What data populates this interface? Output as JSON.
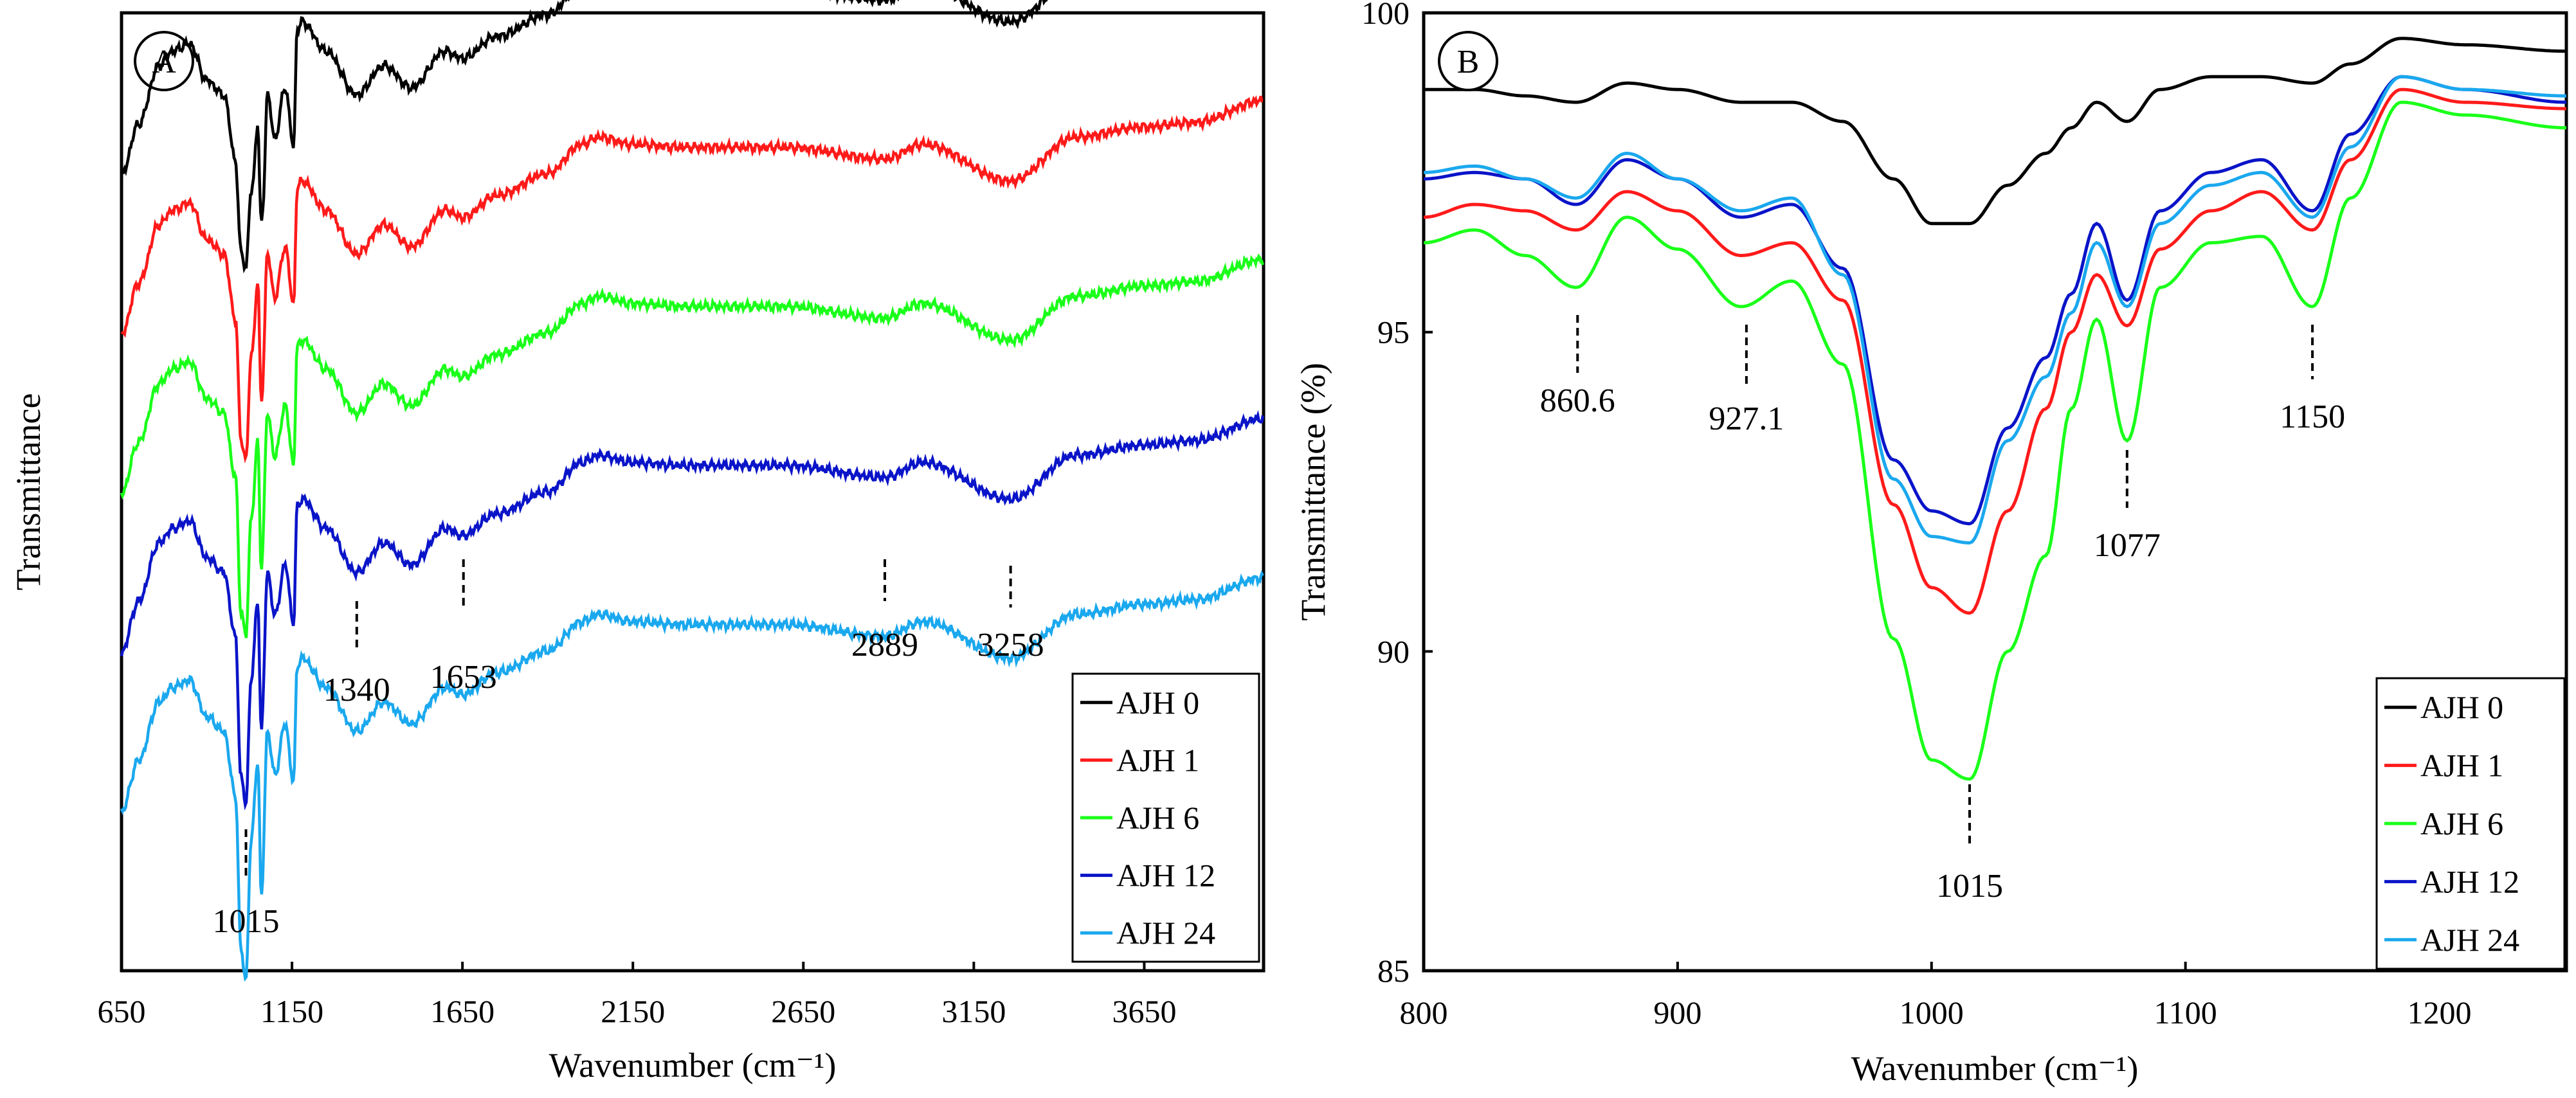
{
  "colors": {
    "AJH 0": "#000000",
    "AJH 1": "#ff1a1a",
    "AJH 6": "#1aff1a",
    "AJH 12": "#0a14c8",
    "AJH 24": "#1aa8ee"
  },
  "chart_data": [
    {
      "panel_label": "A",
      "type": "line",
      "title": "",
      "xlabel": "Wavenumber (cm⁻¹)",
      "ylabel": "Transmittance",
      "xlim": [
        650,
        4000
      ],
      "ylim": [
        -0.3,
        5.6
      ],
      "yticks_visible": false,
      "xticks": [
        650,
        1150,
        1650,
        2150,
        2650,
        3150,
        3650
      ],
      "xtick_labels": [
        "650",
        "1150",
        "1650",
        "2150",
        "2650",
        "3150",
        "3650"
      ],
      "legend_position": "bottom-right",
      "legend": [
        "AJH 0",
        "AJH 1",
        "AJH 6",
        "AJH 12",
        "AJH 24"
      ],
      "offset_description": "stacked spectra, arbitrary offset",
      "series": [
        {
          "name": "AJH 0",
          "offset": 4.6
        },
        {
          "name": "AJH 1",
          "offset": 3.62
        },
        {
          "name": "AJH 6",
          "offset": 2.64
        },
        {
          "name": "AJH 12",
          "offset": 1.66
        },
        {
          "name": "AJH 24",
          "offset": 0.68
        }
      ],
      "annotations": [
        {
          "text": "1015",
          "x": 1015
        },
        {
          "text": "1340",
          "x": 1340
        },
        {
          "text": "1653",
          "x": 1653
        },
        {
          "text": "2889",
          "x": 2889
        },
        {
          "text": "3258",
          "x": 3258
        }
      ]
    },
    {
      "panel_label": "B",
      "type": "line",
      "title": "",
      "xlabel": "Wavenumber (cm⁻¹)",
      "ylabel": "Transmittance (%)",
      "xlim": [
        800,
        1250
      ],
      "ylim": [
        85,
        100
      ],
      "xticks": [
        800,
        900,
        1000,
        1100,
        1200
      ],
      "xtick_labels": [
        "800",
        "900",
        "1000",
        "1100",
        "1200"
      ],
      "yticks": [
        85,
        90,
        95,
        100
      ],
      "ytick_labels": [
        "85",
        "90",
        "95",
        "100"
      ],
      "legend_position": "bottom-right",
      "legend": [
        "AJH 0",
        "AJH 1",
        "AJH 6",
        "AJH 12",
        "AJH 24"
      ],
      "x": [
        800,
        820,
        840,
        860,
        880,
        900,
        925,
        945,
        965,
        985,
        1000,
        1015,
        1030,
        1045,
        1055,
        1065,
        1077,
        1090,
        1110,
        1130,
        1150,
        1165,
        1185,
        1210,
        1250
      ],
      "series": [
        {
          "name": "AJH 0",
          "values": [
            98.8,
            98.8,
            98.7,
            98.6,
            98.9,
            98.8,
            98.6,
            98.6,
            98.3,
            97.4,
            96.7,
            96.7,
            97.3,
            97.8,
            98.2,
            98.6,
            98.3,
            98.8,
            99.0,
            99.0,
            98.9,
            99.2,
            99.6,
            99.5,
            99.4
          ]
        },
        {
          "name": "AJH 1",
          "values": [
            96.8,
            97.0,
            96.9,
            96.6,
            97.2,
            96.9,
            96.2,
            96.4,
            95.5,
            92.3,
            91.0,
            90.6,
            92.2,
            93.8,
            95.0,
            95.9,
            95.1,
            96.3,
            96.9,
            97.2,
            96.6,
            97.7,
            98.8,
            98.6,
            98.5
          ]
        },
        {
          "name": "AJH 6",
          "values": [
            96.4,
            96.6,
            96.2,
            95.7,
            96.8,
            96.3,
            95.4,
            95.8,
            94.5,
            90.2,
            88.3,
            88.0,
            90.0,
            91.5,
            93.8,
            95.2,
            93.3,
            95.7,
            96.4,
            96.5,
            95.4,
            97.1,
            98.6,
            98.4,
            98.2
          ]
        },
        {
          "name": "AJH 12",
          "values": [
            97.4,
            97.5,
            97.4,
            97.0,
            97.7,
            97.4,
            96.8,
            97.0,
            96.0,
            93.0,
            92.2,
            92.0,
            93.5,
            94.6,
            95.6,
            96.7,
            95.5,
            96.9,
            97.5,
            97.7,
            96.9,
            98.1,
            99.0,
            98.8,
            98.6
          ]
        },
        {
          "name": "AJH 24",
          "values": [
            97.5,
            97.6,
            97.4,
            97.1,
            97.8,
            97.4,
            96.9,
            97.1,
            95.9,
            92.7,
            91.8,
            91.7,
            93.3,
            94.3,
            95.3,
            96.4,
            95.4,
            96.7,
            97.3,
            97.5,
            96.8,
            97.9,
            99.0,
            98.8,
            98.7
          ]
        }
      ],
      "annotations": [
        {
          "text": "860.6",
          "x": 860.6
        },
        {
          "text": "927.1",
          "x": 927.1
        },
        {
          "text": "1015",
          "x": 1015
        },
        {
          "text": "1077",
          "x": 1077
        },
        {
          "text": "1150",
          "x": 1150
        }
      ]
    }
  ]
}
